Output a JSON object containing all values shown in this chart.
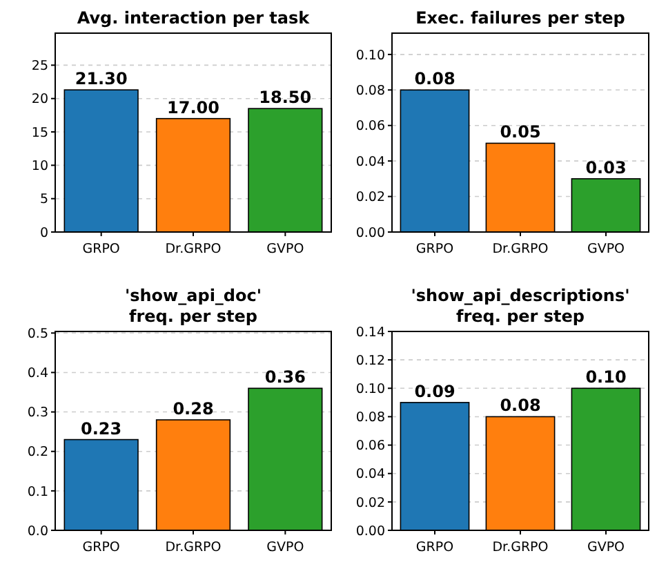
{
  "chart_data": [
    {
      "type": "bar",
      "title": "Avg. interaction per task",
      "categories": [
        "GRPO",
        "Dr.GRPO",
        "GVPO"
      ],
      "values": [
        21.3,
        17.0,
        18.5
      ],
      "colors": [
        "#1f77b4",
        "#ff7f0e",
        "#2ca02c"
      ],
      "value_labels": [
        "21.30",
        "17.00",
        "18.50"
      ],
      "ylim": [
        0,
        29.8
      ],
      "yticks": [
        0,
        5,
        10,
        15,
        20,
        25
      ],
      "grid": "y"
    },
    {
      "type": "bar",
      "title": "Exec. failures per step",
      "categories": [
        "GRPO",
        "Dr.GRPO",
        "GVPO"
      ],
      "values": [
        0.08,
        0.05,
        0.03
      ],
      "colors": [
        "#1f77b4",
        "#ff7f0e",
        "#2ca02c"
      ],
      "value_labels": [
        "0.08",
        "0.05",
        "0.03"
      ],
      "ylim": [
        0,
        0.112
      ],
      "yticks": [
        {
          "value": 0,
          "label": "0.00"
        },
        {
          "value": 0.02,
          "label": "0.02"
        },
        {
          "value": 0.04,
          "label": "0.04"
        },
        {
          "value": 0.06,
          "label": "0.06"
        },
        {
          "value": 0.08,
          "label": "0.08"
        },
        {
          "value": 0.1,
          "label": "0.10"
        }
      ],
      "grid": "y"
    },
    {
      "type": "bar",
      "title": "'show_api_doc'\nfreq. per step",
      "categories": [
        "GRPO",
        "Dr.GRPO",
        "GVPO"
      ],
      "values": [
        0.23,
        0.28,
        0.36
      ],
      "colors": [
        "#1f77b4",
        "#ff7f0e",
        "#2ca02c"
      ],
      "value_labels": [
        "0.23",
        "0.28",
        "0.36"
      ],
      "ylim": [
        0,
        0.504
      ],
      "yticks": [
        {
          "value": 0,
          "label": "0.0"
        },
        0.1,
        0.2,
        0.3,
        0.4,
        0.5
      ],
      "grid": "y"
    },
    {
      "type": "bar",
      "title": "'show_api_descriptions'\nfreq. per step",
      "categories": [
        "GRPO",
        "Dr.GRPO",
        "GVPO"
      ],
      "values": [
        0.09,
        0.08,
        0.1
      ],
      "colors": [
        "#1f77b4",
        "#ff7f0e",
        "#2ca02c"
      ],
      "value_labels": [
        "0.09",
        "0.08",
        "0.10"
      ],
      "ylim": [
        0,
        0.14
      ],
      "yticks": [
        {
          "value": 0,
          "label": "0.00"
        },
        {
          "value": 0.02,
          "label": "0.02"
        },
        {
          "value": 0.04,
          "label": "0.04"
        },
        {
          "value": 0.06,
          "label": "0.06"
        },
        {
          "value": 0.08,
          "label": "0.08"
        },
        {
          "value": 0.1,
          "label": "0.10"
        },
        {
          "value": 0.12,
          "label": "0.12"
        },
        {
          "value": 0.14,
          "label": "0.14"
        }
      ],
      "grid": "y"
    }
  ]
}
